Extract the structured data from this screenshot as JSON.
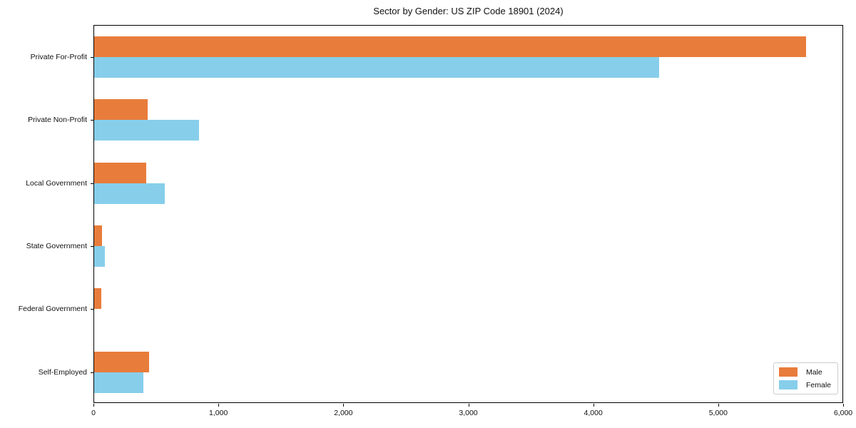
{
  "chart_data": {
    "type": "bar",
    "orientation": "horizontal",
    "title": "Sector by Gender: US ZIP Code 18901 (2024)",
    "categories": [
      "Private For-Profit",
      "Private Non-Profit",
      "Local Government",
      "State Government",
      "Federal Government",
      "Self-Employed"
    ],
    "series": [
      {
        "name": "Male",
        "color": "#E87C3B",
        "values": [
          5710,
          430,
          420,
          65,
          60,
          440
        ]
      },
      {
        "name": "Female",
        "color": "#87CEEB",
        "values": [
          4530,
          840,
          565,
          85,
          0,
          395
        ]
      }
    ],
    "xlabel": "",
    "ylabel": "",
    "xlim": [
      0,
      6000
    ],
    "xticks": [
      0,
      1000,
      2000,
      3000,
      4000,
      5000,
      6000
    ],
    "xtick_labels": [
      "0",
      "1,000",
      "2,000",
      "3,000",
      "4,000",
      "5,000",
      "6,000"
    ],
    "grid": false,
    "legend_position": "lower right",
    "spine_color": "#000000"
  }
}
